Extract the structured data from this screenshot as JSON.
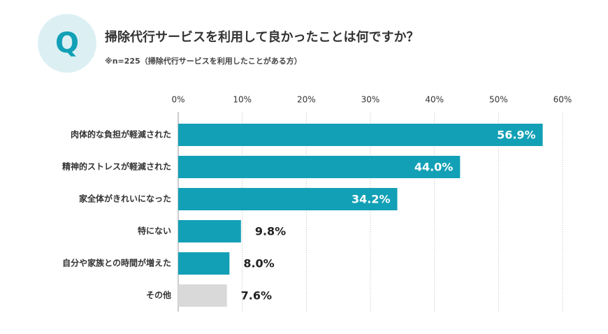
{
  "chart_data": {
    "type": "hbar",
    "badge": "Q",
    "title": "掃除代行サービスを利用して良かったことは何ですか？",
    "subtitle": "※n=225（掃除代行サービスを利用したことがある方）",
    "categories": [
      "肉体的な負担が軽減された",
      "精神的ストレスが軽減された",
      "家全体がきれいになった",
      "特にない",
      "自分や家族との時間が増えた",
      "その他"
    ],
    "values": [
      56.9,
      44.0,
      34.2,
      9.8,
      8.0,
      7.6
    ],
    "value_labels": [
      "56.9%",
      "44.0%",
      "34.2%",
      "9.8%",
      "8.0%",
      "7.6%"
    ],
    "colors": [
      "#12a0b6",
      "#12a0b6",
      "#12a0b6",
      "#12a0b6",
      "#12a0b6",
      "#d9d9d9"
    ],
    "xlim": [
      0,
      60
    ],
    "xticks": [
      {
        "value": 0,
        "label": "0%"
      },
      {
        "value": 10,
        "label": "10%"
      },
      {
        "value": 20,
        "label": "20%"
      },
      {
        "value": 30,
        "label": "30%"
      },
      {
        "value": 40,
        "label": "40%"
      },
      {
        "value": 50,
        "label": "50%"
      },
      {
        "value": 60,
        "label": "60%"
      }
    ],
    "grid": true
  }
}
